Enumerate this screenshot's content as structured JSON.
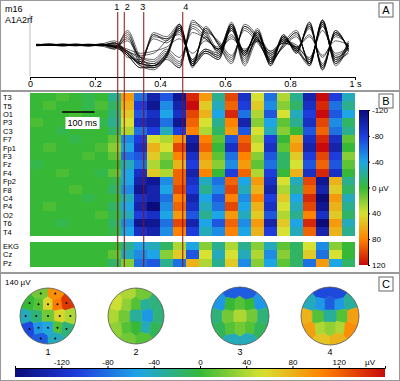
{
  "chart_data": [
    {
      "type": "line",
      "title": "A",
      "annotations": [
        "m16",
        "A1A2rf"
      ],
      "xlim": [
        0,
        1
      ],
      "xticks": [
        0,
        0.2,
        0.4,
        0.6,
        0.8,
        {
          "value": 1,
          "label": "1 s"
        }
      ],
      "ylim": [
        -150,
        150
      ],
      "tick_labels": "x",
      "color": "#000000",
      "markers": [
        {
          "label": "1",
          "x": 0.27
        },
        {
          "label": "2",
          "x": 0.29
        },
        {
          "label": "3",
          "x": 0.35
        },
        {
          "label": "4",
          "x": 0.47
        }
      ]
    },
    {
      "type": "heatmap",
      "title": "B",
      "tick_labels": "y",
      "xlim": [
        0,
        1
      ],
      "x": [
        0.02,
        0.06,
        0.1,
        0.14,
        0.18,
        0.22,
        0.26,
        0.3,
        0.34,
        0.38,
        0.42,
        0.46,
        0.5,
        0.54,
        0.58,
        0.62,
        0.66,
        0.7,
        0.74,
        0.78,
        0.82,
        0.86,
        0.9,
        0.94,
        0.98
      ],
      "categories": [
        "T3",
        "T5",
        "O1",
        "P3",
        "C3",
        "F7",
        "Fp1",
        "F3",
        "Fz",
        "F4",
        "Fp2",
        "F8",
        "C4",
        "P4",
        "O2",
        "T6",
        "T4",
        "EKG",
        "Cz",
        "Pz"
      ],
      "cells": [
        [
          0,
          0,
          5,
          0,
          -5,
          0,
          -20,
          70,
          -60,
          -100,
          -70,
          -110,
          110,
          70,
          -20,
          100,
          -90,
          40,
          -60,
          30,
          -20,
          -100,
          120,
          -80,
          -30
        ],
        [
          0,
          5,
          0,
          0,
          -5,
          5,
          -10,
          60,
          -80,
          -110,
          -50,
          -100,
          120,
          50,
          -30,
          90,
          -80,
          50,
          -50,
          20,
          -10,
          -90,
          110,
          -60,
          -20
        ],
        [
          0,
          0,
          0,
          5,
          0,
          0,
          -15,
          50,
          -70,
          -90,
          -40,
          -90,
          100,
          60,
          -40,
          110,
          -60,
          30,
          -70,
          40,
          -30,
          -80,
          120,
          -70,
          -40
        ],
        [
          5,
          0,
          0,
          0,
          0,
          -5,
          -20,
          40,
          -90,
          -100,
          -60,
          -110,
          90,
          40,
          -20,
          80,
          -100,
          20,
          -40,
          10,
          -20,
          -90,
          100,
          -50,
          -10
        ],
        [
          0,
          0,
          -5,
          0,
          0,
          0,
          -10,
          30,
          -60,
          -80,
          -30,
          -80,
          80,
          30,
          -10,
          70,
          -70,
          40,
          -30,
          20,
          0,
          -70,
          90,
          -60,
          -20
        ],
        [
          0,
          0,
          0,
          -5,
          0,
          0,
          10,
          -50,
          -80,
          40,
          30,
          70,
          -100,
          80,
          10,
          -70,
          90,
          30,
          -80,
          0,
          60,
          -90,
          110,
          -90,
          10
        ],
        [
          0,
          5,
          0,
          0,
          0,
          5,
          20,
          -40,
          -90,
          60,
          40,
          100,
          -110,
          90,
          0,
          -90,
          100,
          40,
          -90,
          10,
          70,
          -100,
          120,
          -100,
          0
        ],
        [
          0,
          0,
          0,
          0,
          5,
          0,
          10,
          -60,
          -70,
          50,
          20,
          80,
          -90,
          70,
          10,
          -60,
          80,
          20,
          -70,
          -10,
          50,
          -80,
          100,
          -80,
          20
        ],
        [
          -5,
          0,
          0,
          0,
          0,
          0,
          0,
          -30,
          -60,
          30,
          10,
          60,
          -80,
          60,
          20,
          -50,
          70,
          10,
          -60,
          -10,
          40,
          -70,
          90,
          -70,
          10
        ],
        [
          0,
          0,
          5,
          0,
          0,
          -5,
          10,
          -40,
          -90,
          50,
          30,
          90,
          -100,
          80,
          0,
          -80,
          90,
          30,
          -80,
          0,
          60,
          -90,
          110,
          -90,
          0
        ],
        [
          0,
          0,
          0,
          0,
          0,
          0,
          -5,
          -40,
          -100,
          -110,
          -50,
          90,
          -90,
          -30,
          -60,
          90,
          -40,
          70,
          -90,
          40,
          -30,
          100,
          -110,
          60,
          -20
        ],
        [
          0,
          0,
          0,
          5,
          0,
          0,
          -10,
          -50,
          -110,
          -100,
          -40,
          100,
          -80,
          -20,
          -50,
          100,
          -30,
          60,
          -100,
          30,
          -20,
          90,
          -100,
          50,
          -10
        ],
        [
          0,
          0,
          0,
          0,
          -5,
          0,
          0,
          -30,
          -90,
          -100,
          -60,
          80,
          -100,
          -40,
          -70,
          80,
          -50,
          80,
          -80,
          50,
          -40,
          110,
          -120,
          70,
          -30
        ],
        [
          0,
          5,
          0,
          0,
          0,
          0,
          -10,
          -40,
          -100,
          -120,
          -50,
          90,
          -90,
          -30,
          -60,
          100,
          -40,
          60,
          -90,
          40,
          -30,
          100,
          -110,
          60,
          -20
        ],
        [
          0,
          0,
          0,
          0,
          0,
          5,
          -5,
          -30,
          -80,
          -90,
          -40,
          70,
          -70,
          -20,
          -40,
          70,
          -30,
          50,
          -70,
          30,
          -20,
          80,
          -90,
          50,
          -10
        ],
        [
          0,
          0,
          -5,
          0,
          0,
          0,
          -10,
          -50,
          -110,
          -110,
          -60,
          100,
          -100,
          -40,
          -70,
          90,
          -50,
          70,
          -100,
          50,
          -40,
          110,
          -120,
          70,
          -30
        ],
        [
          0,
          0,
          0,
          0,
          0,
          0,
          -5,
          -40,
          -90,
          -100,
          -50,
          80,
          -80,
          -30,
          -50,
          80,
          -40,
          60,
          -80,
          40,
          -30,
          90,
          -100,
          60,
          -20
        ],
        [
          0,
          0,
          0,
          0,
          0,
          0,
          0,
          -20,
          -40,
          -30,
          -10,
          30,
          -40,
          20,
          -20,
          30,
          -20,
          20,
          -30,
          10,
          -10,
          40,
          -50,
          20,
          0
        ],
        [
          0,
          0,
          0,
          0,
          0,
          0,
          10,
          -30,
          -50,
          -40,
          20,
          50,
          -70,
          40,
          -30,
          40,
          -30,
          30,
          -50,
          20,
          -10,
          50,
          -60,
          40,
          0
        ],
        [
          0,
          0,
          0,
          0,
          0,
          0,
          -10,
          20,
          -60,
          -70,
          -20,
          -60,
          60,
          30,
          -20,
          50,
          -50,
          20,
          -40,
          10,
          -10,
          -60,
          70,
          -40,
          -10
        ]
      ],
      "colorbar": {
        "range": [
          -120,
          120
        ],
        "ticks": [
          -120,
          -80,
          -40,
          {
            "value": 0,
            "label": "0 µV"
          },
          40,
          80,
          120
        ]
      },
      "scale_bar": {
        "value": 0.1,
        "label": "100 ms"
      }
    },
    {
      "type": "topomap",
      "title": "C",
      "annotations": [
        "140 µV"
      ],
      "maps": [
        {
          "label": "1",
          "values": [
            -40,
            -100,
            -90,
            -60,
            -20,
            0,
            20,
            10,
            60,
            110,
            100,
            140,
            60,
            10,
            -40,
            -20,
            40,
            null,
            20,
            -50
          ]
        },
        {
          "label": "2",
          "values": [
            40,
            30,
            20,
            10,
            20,
            50,
            40,
            30,
            10,
            -30,
            20,
            -20,
            -60,
            -40,
            10,
            -10,
            -20,
            null,
            -30,
            0
          ]
        },
        {
          "label": "3",
          "values": [
            -20,
            -10,
            -40,
            10,
            20,
            -60,
            -90,
            0,
            10,
            0,
            -90,
            -60,
            20,
            10,
            -40,
            -10,
            -20,
            null,
            40,
            20
          ]
        },
        {
          "label": "4",
          "values": [
            80,
            90,
            70,
            40,
            10,
            -40,
            -100,
            -60,
            -90,
            -60,
            -100,
            -30,
            10,
            40,
            80,
            100,
            90,
            null,
            -30,
            30
          ]
        }
      ],
      "colorbar": {
        "range": [
          -160,
          160
        ],
        "ticks": [
          -120,
          -80,
          -40,
          0,
          40,
          80,
          120
        ],
        "label": "µV"
      }
    }
  ]
}
